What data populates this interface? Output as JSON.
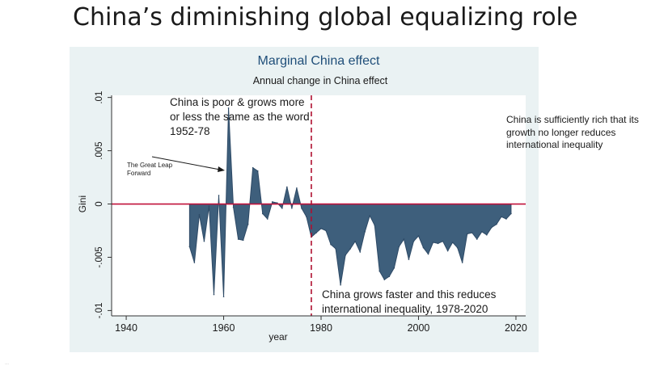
{
  "slide": {
    "title": "China’s diminishing global equalizing role",
    "footer": "..."
  },
  "colors": {
    "area_fill": "#3e5f7c",
    "area_stroke": "#2e4a66",
    "zero_line": "#c0103a",
    "divider_line": "#b01030",
    "panel_bg": "#eaf2f3",
    "title_color": "#1f4e79"
  },
  "annotations": {
    "poor": "China is poor & grows more or less the same as the word 1952-78",
    "leap": "The Great Leap Forward",
    "rich": "China is sufficiently rich that its growth no longer reduces international inequality",
    "faster": "China grows faster and this reduces international inequality, 1978-2020"
  },
  "chart_data": {
    "type": "area",
    "title": "Marginal China effect",
    "subtitle": "Annual change in China effect",
    "xlabel": "year",
    "ylabel": "Gini",
    "xlim": [
      1937,
      2022
    ],
    "ylim": [
      -0.0105,
      0.0102
    ],
    "xticks": [
      1940,
      1960,
      1980,
      2000,
      2020
    ],
    "yticks": [
      -0.01,
      -0.005,
      0,
      0.005,
      0.01
    ],
    "ytick_labels": [
      "-.01",
      "-.005",
      "0",
      ".005",
      ".01"
    ],
    "grid": false,
    "legend": "none",
    "reference_lines": {
      "y": 0,
      "x": 1978
    },
    "series": [
      {
        "x": [
          1953,
          1954,
          1955,
          1956,
          1957,
          1958,
          1959,
          1960,
          1961,
          1962,
          1963,
          1964,
          1965,
          1966,
          1967,
          1968,
          1969,
          1970,
          1971,
          1972,
          1973,
          1974,
          1975,
          1976,
          1977,
          1978,
          1979,
          1980,
          1981,
          1982,
          1983,
          1984,
          1985,
          1986,
          1987,
          1988,
          1989,
          1990,
          1991,
          1992,
          1993,
          1994,
          1995,
          1996,
          1997,
          1998,
          1999,
          2000,
          2001,
          2002,
          2003,
          2004,
          2005,
          2006,
          2007,
          2008,
          2009,
          2010,
          2011,
          2012,
          2013,
          2014,
          2015,
          2016,
          2017,
          2018,
          2019
        ],
        "values": [
          -0.004,
          -0.0055,
          -0.001,
          -0.0035,
          -0.0002,
          -0.0085,
          0.0008,
          -0.0087,
          0.009,
          -0.0003,
          -0.0033,
          -0.0034,
          -0.0019,
          0.0034,
          0.0031,
          -0.0009,
          -0.0014,
          0.0002,
          0.0001,
          -0.0004,
          0.0016,
          -0.0004,
          0.0015,
          -0.0004,
          -0.0012,
          -0.0031,
          -0.0027,
          -0.0023,
          -0.0025,
          -0.0038,
          -0.0042,
          -0.0076,
          -0.0048,
          -0.0042,
          -0.0035,
          -0.0045,
          -0.0026,
          -0.0011,
          -0.002,
          -0.0063,
          -0.0071,
          -0.0068,
          -0.006,
          -0.004,
          -0.0033,
          -0.0052,
          -0.0035,
          -0.003,
          -0.0041,
          -0.0047,
          -0.0036,
          -0.0037,
          -0.0035,
          -0.0044,
          -0.0036,
          -0.0041,
          -0.0055,
          -0.0028,
          -0.0027,
          -0.0033,
          -0.0026,
          -0.0029,
          -0.0022,
          -0.0019,
          -0.0012,
          -0.0014,
          -0.0009
        ]
      }
    ]
  }
}
